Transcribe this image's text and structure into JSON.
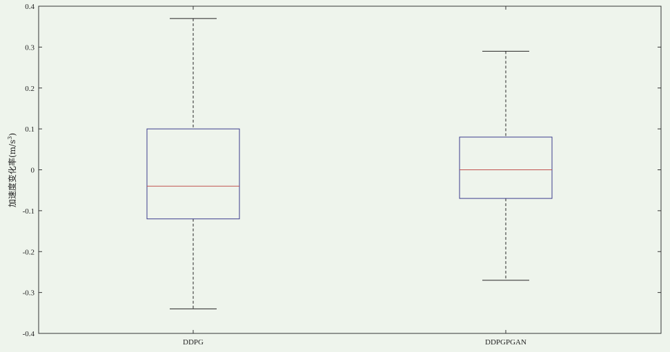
{
  "chart_data": {
    "type": "box",
    "title": "",
    "xlabel": "",
    "ylabel": "加速度变化率(m/s",
    "ylabel_superscript": "3",
    "ylabel_suffix": ")",
    "ylim": [
      -0.4,
      0.4
    ],
    "yticks": [
      -0.4,
      -0.3,
      -0.2,
      -0.1,
      0,
      0.1,
      0.2,
      0.3,
      0.4
    ],
    "ytick_labels": [
      "-0.4",
      "-0.3",
      "-0.2",
      "-0.1",
      "0",
      "0.1",
      "0.2",
      "0.3",
      "0.4"
    ],
    "grid": false,
    "categories": [
      "DDPG",
      "DDPGPGAN"
    ],
    "boxes": [
      {
        "category": "DDPG",
        "whisker_low": -0.34,
        "q1": -0.12,
        "median": -0.04,
        "q3": 0.1,
        "whisker_high": 0.37
      },
      {
        "category": "DDPGPGAN",
        "whisker_low": -0.27,
        "q1": -0.07,
        "median": 0.0,
        "q3": 0.08,
        "whisker_high": 0.29
      }
    ],
    "colors": {
      "background": "#eef4ec",
      "axis": "#333333",
      "box": "#3a3a8c",
      "median": "#c0504d",
      "whisker": "#222222"
    }
  }
}
